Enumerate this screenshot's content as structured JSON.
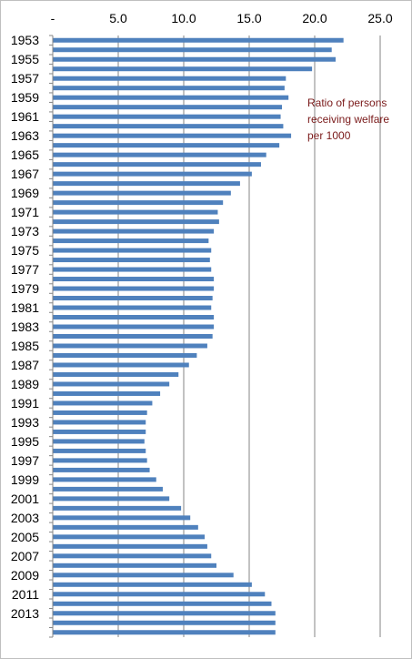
{
  "chart_data": {
    "type": "bar",
    "orientation": "horizontal",
    "annotation": "Ratio of persons\nreceiving welfare\nper 1000",
    "x_tick_labels": [
      "-",
      "5.0",
      "10.0",
      "15.0",
      "20.0",
      "25.0"
    ],
    "xlim": [
      0,
      25
    ],
    "grid": true,
    "bar_color": "#4f81bd",
    "categories": [
      1953,
      1954,
      1955,
      1956,
      1957,
      1958,
      1959,
      1960,
      1961,
      1962,
      1963,
      1964,
      1965,
      1966,
      1967,
      1968,
      1969,
      1970,
      1971,
      1972,
      1973,
      1974,
      1975,
      1976,
      1977,
      1978,
      1979,
      1980,
      1981,
      1982,
      1983,
      1984,
      1985,
      1986,
      1987,
      1988,
      1989,
      1990,
      1991,
      1992,
      1993,
      1994,
      1995,
      1996,
      1997,
      1998,
      1999,
      2000,
      2001,
      2002,
      2003,
      2004,
      2005,
      2006,
      2007,
      2008,
      2009,
      2010,
      2011,
      2012,
      2013,
      2014,
      2015
    ],
    "y_tick_labels": [
      "1953",
      "1955",
      "1957",
      "1959",
      "1961",
      "1963",
      "1965",
      "1967",
      "1969",
      "1971",
      "1973",
      "1975",
      "1977",
      "1979",
      "1981",
      "1983",
      "1985",
      "1987",
      "1989",
      "1991",
      "1993",
      "1995",
      "1997",
      "1999",
      "2001",
      "2003",
      "2005",
      "2007",
      "2009",
      "2011",
      "2013"
    ],
    "values": [
      22.2,
      21.3,
      21.6,
      19.8,
      17.8,
      17.7,
      18.0,
      17.5,
      17.4,
      17.6,
      18.2,
      17.3,
      16.3,
      15.9,
      15.2,
      14.3,
      13.6,
      13.0,
      12.6,
      12.7,
      12.3,
      11.9,
      12.1,
      12.0,
      12.1,
      12.3,
      12.3,
      12.2,
      12.1,
      12.3,
      12.3,
      12.2,
      11.8,
      11.0,
      10.4,
      9.6,
      8.9,
      8.2,
      7.6,
      7.2,
      7.1,
      7.1,
      7.0,
      7.1,
      7.2,
      7.4,
      7.9,
      8.4,
      8.9,
      9.8,
      10.5,
      11.1,
      11.6,
      11.8,
      12.1,
      12.5,
      13.8,
      15.2,
      16.2,
      16.7,
      17.0,
      17.0,
      17.0
    ]
  }
}
